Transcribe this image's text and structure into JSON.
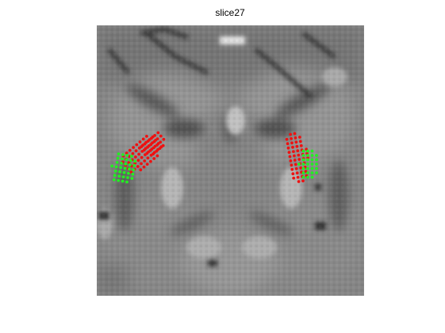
{
  "figure": {
    "title": "slice27"
  },
  "overlay": {
    "label_colors": {
      "red": "#ee1111",
      "green": "#22ee22"
    }
  }
}
